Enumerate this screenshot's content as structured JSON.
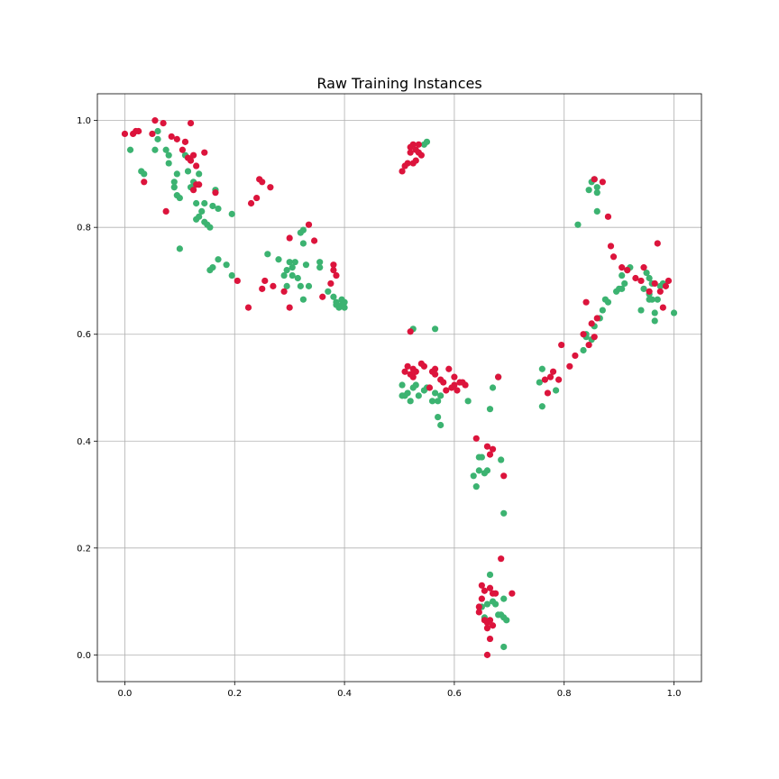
{
  "chart_data": {
    "type": "scatter",
    "title": "Raw Training Instances",
    "xlabel": "",
    "ylabel": "",
    "xlim": [
      -0.05,
      1.05
    ],
    "ylim": [
      -0.05,
      1.05
    ],
    "xticks": [
      0.0,
      0.2,
      0.4,
      0.6,
      0.8,
      1.0
    ],
    "yticks": [
      0.0,
      0.2,
      0.4,
      0.6,
      0.8,
      1.0
    ],
    "xtick_labels": [
      "0.0",
      "0.2",
      "0.4",
      "0.6",
      "0.8",
      "1.0"
    ],
    "ytick_labels": [
      "0.0",
      "0.2",
      "0.4",
      "0.6",
      "0.8",
      "1.0"
    ],
    "grid": true,
    "colors": {
      "green": "#3cb371",
      "red": "#dc143c"
    },
    "series": [
      {
        "color": "#3cb371",
        "points": [
          [
            0.01,
            0.945
          ],
          [
            0.03,
            0.905
          ],
          [
            0.035,
            0.9
          ],
          [
            0.055,
            0.945
          ],
          [
            0.06,
            0.965
          ],
          [
            0.06,
            0.98
          ],
          [
            0.075,
            0.945
          ],
          [
            0.08,
            0.935
          ],
          [
            0.08,
            0.92
          ],
          [
            0.09,
            0.885
          ],
          [
            0.09,
            0.875
          ],
          [
            0.095,
            0.9
          ],
          [
            0.095,
            0.86
          ],
          [
            0.1,
            0.855
          ],
          [
            0.1,
            0.76
          ],
          [
            0.11,
            0.935
          ],
          [
            0.115,
            0.905
          ],
          [
            0.12,
            0.875
          ],
          [
            0.125,
            0.885
          ],
          [
            0.13,
            0.845
          ],
          [
            0.13,
            0.815
          ],
          [
            0.135,
            0.82
          ],
          [
            0.135,
            0.9
          ],
          [
            0.14,
            0.83
          ],
          [
            0.145,
            0.845
          ],
          [
            0.145,
            0.81
          ],
          [
            0.15,
            0.805
          ],
          [
            0.155,
            0.8
          ],
          [
            0.155,
            0.72
          ],
          [
            0.16,
            0.725
          ],
          [
            0.16,
            0.84
          ],
          [
            0.165,
            0.87
          ],
          [
            0.17,
            0.74
          ],
          [
            0.17,
            0.835
          ],
          [
            0.185,
            0.73
          ],
          [
            0.195,
            0.825
          ],
          [
            0.195,
            0.71
          ],
          [
            0.26,
            0.75
          ],
          [
            0.28,
            0.74
          ],
          [
            0.29,
            0.71
          ],
          [
            0.295,
            0.69
          ],
          [
            0.295,
            0.72
          ],
          [
            0.3,
            0.735
          ],
          [
            0.305,
            0.725
          ],
          [
            0.305,
            0.71
          ],
          [
            0.31,
            0.735
          ],
          [
            0.315,
            0.705
          ],
          [
            0.32,
            0.69
          ],
          [
            0.32,
            0.79
          ],
          [
            0.325,
            0.795
          ],
          [
            0.325,
            0.77
          ],
          [
            0.325,
            0.665
          ],
          [
            0.33,
            0.73
          ],
          [
            0.335,
            0.69
          ],
          [
            0.355,
            0.725
          ],
          [
            0.355,
            0.735
          ],
          [
            0.37,
            0.68
          ],
          [
            0.38,
            0.67
          ],
          [
            0.385,
            0.66
          ],
          [
            0.385,
            0.655
          ],
          [
            0.39,
            0.65
          ],
          [
            0.395,
            0.655
          ],
          [
            0.395,
            0.665
          ],
          [
            0.4,
            0.65
          ],
          [
            0.4,
            0.66
          ],
          [
            0.545,
            0.955
          ],
          [
            0.55,
            0.96
          ],
          [
            0.505,
            0.505
          ],
          [
            0.505,
            0.485
          ],
          [
            0.51,
            0.485
          ],
          [
            0.515,
            0.49
          ],
          [
            0.52,
            0.475
          ],
          [
            0.525,
            0.5
          ],
          [
            0.525,
            0.61
          ],
          [
            0.53,
            0.505
          ],
          [
            0.535,
            0.485
          ],
          [
            0.545,
            0.495
          ],
          [
            0.55,
            0.5
          ],
          [
            0.56,
            0.475
          ],
          [
            0.565,
            0.49
          ],
          [
            0.565,
            0.61
          ],
          [
            0.57,
            0.475
          ],
          [
            0.57,
            0.445
          ],
          [
            0.575,
            0.485
          ],
          [
            0.575,
            0.43
          ],
          [
            0.625,
            0.475
          ],
          [
            0.665,
            0.46
          ],
          [
            0.67,
            0.5
          ],
          [
            0.68,
            0.52
          ],
          [
            0.635,
            0.335
          ],
          [
            0.64,
            0.315
          ],
          [
            0.645,
            0.345
          ],
          [
            0.645,
            0.37
          ],
          [
            0.65,
            0.37
          ],
          [
            0.655,
            0.34
          ],
          [
            0.66,
            0.345
          ],
          [
            0.685,
            0.365
          ],
          [
            0.69,
            0.265
          ],
          [
            0.65,
            0.09
          ],
          [
            0.655,
            0.07
          ],
          [
            0.66,
            0.095
          ],
          [
            0.665,
            0.15
          ],
          [
            0.67,
            0.1
          ],
          [
            0.675,
            0.095
          ],
          [
            0.68,
            0.075
          ],
          [
            0.685,
            0.075
          ],
          [
            0.69,
            0.105
          ],
          [
            0.69,
            0.07
          ],
          [
            0.695,
            0.065
          ],
          [
            0.69,
            0.015
          ],
          [
            0.755,
            0.51
          ],
          [
            0.76,
            0.535
          ],
          [
            0.76,
            0.465
          ],
          [
            0.785,
            0.495
          ],
          [
            0.825,
            0.805
          ],
          [
            0.835,
            0.57
          ],
          [
            0.84,
            0.6
          ],
          [
            0.84,
            0.595
          ],
          [
            0.845,
            0.87
          ],
          [
            0.85,
            0.885
          ],
          [
            0.85,
            0.59
          ],
          [
            0.855,
            0.89
          ],
          [
            0.855,
            0.615
          ],
          [
            0.86,
            0.83
          ],
          [
            0.86,
            0.865
          ],
          [
            0.86,
            0.875
          ],
          [
            0.865,
            0.63
          ],
          [
            0.87,
            0.645
          ],
          [
            0.875,
            0.665
          ],
          [
            0.88,
            0.66
          ],
          [
            0.895,
            0.68
          ],
          [
            0.9,
            0.685
          ],
          [
            0.905,
            0.71
          ],
          [
            0.905,
            0.685
          ],
          [
            0.91,
            0.695
          ],
          [
            0.915,
            0.72
          ],
          [
            0.92,
            0.725
          ],
          [
            0.94,
            0.645
          ],
          [
            0.945,
            0.685
          ],
          [
            0.95,
            0.715
          ],
          [
            0.955,
            0.705
          ],
          [
            0.955,
            0.675
          ],
          [
            0.955,
            0.665
          ],
          [
            0.96,
            0.695
          ],
          [
            0.96,
            0.665
          ],
          [
            0.965,
            0.64
          ],
          [
            0.965,
            0.625
          ],
          [
            0.97,
            0.665
          ],
          [
            0.975,
            0.69
          ],
          [
            0.98,
            0.695
          ],
          [
            1.0,
            0.64
          ]
        ]
      },
      {
        "color": "#dc143c",
        "points": [
          [
            0.0,
            0.975
          ],
          [
            0.015,
            0.975
          ],
          [
            0.02,
            0.98
          ],
          [
            0.025,
            0.98
          ],
          [
            0.035,
            0.885
          ],
          [
            0.05,
            0.975
          ],
          [
            0.055,
            1.0
          ],
          [
            0.07,
            0.995
          ],
          [
            0.075,
            0.83
          ],
          [
            0.085,
            0.97
          ],
          [
            0.095,
            0.965
          ],
          [
            0.105,
            0.945
          ],
          [
            0.11,
            0.96
          ],
          [
            0.115,
            0.93
          ],
          [
            0.12,
            0.995
          ],
          [
            0.12,
            0.925
          ],
          [
            0.125,
            0.935
          ],
          [
            0.125,
            0.87
          ],
          [
            0.13,
            0.915
          ],
          [
            0.13,
            0.88
          ],
          [
            0.135,
            0.88
          ],
          [
            0.145,
            0.94
          ],
          [
            0.165,
            0.865
          ],
          [
            0.205,
            0.7
          ],
          [
            0.225,
            0.65
          ],
          [
            0.23,
            0.845
          ],
          [
            0.24,
            0.855
          ],
          [
            0.245,
            0.89
          ],
          [
            0.25,
            0.885
          ],
          [
            0.25,
            0.685
          ],
          [
            0.255,
            0.7
          ],
          [
            0.265,
            0.875
          ],
          [
            0.27,
            0.69
          ],
          [
            0.29,
            0.68
          ],
          [
            0.3,
            0.78
          ],
          [
            0.3,
            0.65
          ],
          [
            0.335,
            0.805
          ],
          [
            0.345,
            0.775
          ],
          [
            0.36,
            0.67
          ],
          [
            0.375,
            0.695
          ],
          [
            0.38,
            0.73
          ],
          [
            0.38,
            0.72
          ],
          [
            0.385,
            0.71
          ],
          [
            0.505,
            0.905
          ],
          [
            0.51,
            0.915
          ],
          [
            0.515,
            0.92
          ],
          [
            0.52,
            0.94
          ],
          [
            0.52,
            0.95
          ],
          [
            0.525,
            0.955
          ],
          [
            0.525,
            0.92
          ],
          [
            0.53,
            0.945
          ],
          [
            0.53,
            0.925
          ],
          [
            0.535,
            0.955
          ],
          [
            0.535,
            0.94
          ],
          [
            0.54,
            0.935
          ],
          [
            0.51,
            0.53
          ],
          [
            0.515,
            0.54
          ],
          [
            0.52,
            0.525
          ],
          [
            0.52,
            0.605
          ],
          [
            0.525,
            0.535
          ],
          [
            0.525,
            0.52
          ],
          [
            0.53,
            0.53
          ],
          [
            0.54,
            0.545
          ],
          [
            0.545,
            0.54
          ],
          [
            0.555,
            0.5
          ],
          [
            0.56,
            0.53
          ],
          [
            0.565,
            0.525
          ],
          [
            0.565,
            0.535
          ],
          [
            0.575,
            0.515
          ],
          [
            0.58,
            0.51
          ],
          [
            0.585,
            0.495
          ],
          [
            0.59,
            0.535
          ],
          [
            0.595,
            0.5
          ],
          [
            0.6,
            0.52
          ],
          [
            0.6,
            0.505
          ],
          [
            0.605,
            0.495
          ],
          [
            0.61,
            0.51
          ],
          [
            0.615,
            0.51
          ],
          [
            0.62,
            0.505
          ],
          [
            0.68,
            0.52
          ],
          [
            0.64,
            0.405
          ],
          [
            0.66,
            0.39
          ],
          [
            0.665,
            0.375
          ],
          [
            0.67,
            0.385
          ],
          [
            0.69,
            0.335
          ],
          [
            0.645,
            0.09
          ],
          [
            0.645,
            0.08
          ],
          [
            0.65,
            0.13
          ],
          [
            0.65,
            0.105
          ],
          [
            0.655,
            0.12
          ],
          [
            0.655,
            0.065
          ],
          [
            0.66,
            0.06
          ],
          [
            0.66,
            0.05
          ],
          [
            0.665,
            0.125
          ],
          [
            0.665,
            0.065
          ],
          [
            0.67,
            0.115
          ],
          [
            0.67,
            0.055
          ],
          [
            0.675,
            0.115
          ],
          [
            0.66,
            0.0
          ],
          [
            0.665,
            0.03
          ],
          [
            0.685,
            0.18
          ],
          [
            0.705,
            0.115
          ],
          [
            0.765,
            0.515
          ],
          [
            0.77,
            0.49
          ],
          [
            0.775,
            0.52
          ],
          [
            0.78,
            0.53
          ],
          [
            0.79,
            0.515
          ],
          [
            0.795,
            0.58
          ],
          [
            0.81,
            0.54
          ],
          [
            0.82,
            0.56
          ],
          [
            0.835,
            0.6
          ],
          [
            0.84,
            0.66
          ],
          [
            0.845,
            0.58
          ],
          [
            0.85,
            0.62
          ],
          [
            0.855,
            0.595
          ],
          [
            0.855,
            0.89
          ],
          [
            0.86,
            0.63
          ],
          [
            0.87,
            0.885
          ],
          [
            0.88,
            0.82
          ],
          [
            0.885,
            0.765
          ],
          [
            0.89,
            0.745
          ],
          [
            0.905,
            0.725
          ],
          [
            0.915,
            0.72
          ],
          [
            0.93,
            0.705
          ],
          [
            0.94,
            0.7
          ],
          [
            0.945,
            0.725
          ],
          [
            0.955,
            0.68
          ],
          [
            0.965,
            0.695
          ],
          [
            0.97,
            0.77
          ],
          [
            0.975,
            0.68
          ],
          [
            0.98,
            0.65
          ],
          [
            0.985,
            0.69
          ],
          [
            0.99,
            0.7
          ]
        ]
      }
    ]
  }
}
